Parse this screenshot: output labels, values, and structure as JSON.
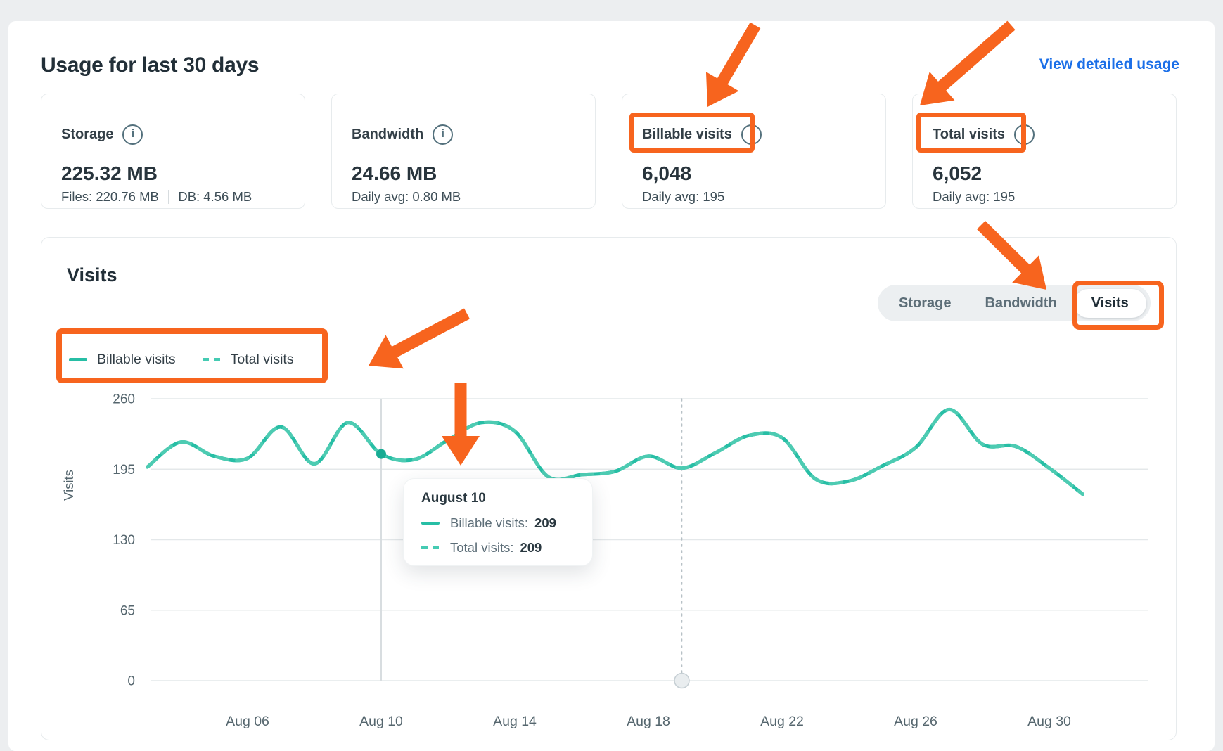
{
  "header": {
    "title": "Usage for last 30 days",
    "link_label": "View detailed usage"
  },
  "stats": {
    "cards": [
      {
        "label": "Storage",
        "value": "225.32 MB",
        "sub": "Files: 220.76 MB",
        "sub2": "DB: 4.56 MB"
      },
      {
        "label": "Bandwidth",
        "value": "24.66 MB",
        "sub": "Daily avg: 0.80 MB"
      },
      {
        "label": "Billable visits",
        "value": "6,048",
        "sub": "Daily avg: 195"
      },
      {
        "label": "Total visits",
        "value": "6,052",
        "sub": "Daily avg: 195"
      }
    ]
  },
  "chart": {
    "title": "Visits",
    "tabs": [
      {
        "label": "Storage",
        "active": false
      },
      {
        "label": "Bandwidth",
        "active": false
      },
      {
        "label": "Visits",
        "active": true
      }
    ],
    "legend": [
      {
        "label": "Billable visits",
        "style": "solid"
      },
      {
        "label": "Total visits",
        "style": "dashed"
      }
    ],
    "tooltip": {
      "title": "August 10",
      "rows": [
        {
          "label": "Billable visits:",
          "value": "209",
          "style": "solid"
        },
        {
          "label": "Total visits:",
          "value": "209",
          "style": "dashed"
        }
      ]
    }
  },
  "chart_data": {
    "type": "line",
    "title": "Visits",
    "ylabel": "Visits",
    "ylim": [
      0,
      260
    ],
    "y_ticks": [
      0,
      65,
      130,
      195,
      260
    ],
    "x_first_day": 3,
    "x_last_day": 31,
    "x_month": "August",
    "x_tick_days": [
      6,
      10,
      14,
      18,
      22,
      26,
      30
    ],
    "x_tick_labels": [
      "Aug 06",
      "Aug 10",
      "Aug 14",
      "Aug 18",
      "Aug 22",
      "Aug 26",
      "Aug 30"
    ],
    "grid": true,
    "legend_position": "top-left",
    "series": [
      {
        "name": "Billable visits",
        "style": "solid",
        "color": "#27bea5",
        "values": [
          197,
          220,
          207,
          205,
          234,
          200,
          238,
          209,
          204,
          222,
          238,
          230,
          188,
          190,
          193,
          207,
          196,
          210,
          226,
          224,
          186,
          184,
          198,
          215,
          250,
          218,
          216,
          196,
          172
        ]
      },
      {
        "name": "Total visits",
        "style": "dashed",
        "color": "#4dcbb2",
        "values": [
          197,
          220,
          207,
          205,
          234,
          200,
          238,
          209,
          204,
          222,
          238,
          230,
          188,
          190,
          193,
          207,
          196,
          210,
          226,
          224,
          186,
          184,
          198,
          215,
          250,
          218,
          216,
          196,
          172
        ]
      }
    ],
    "markers": {
      "highlight_day": 10,
      "highlight_value": 209,
      "cursor_day": 19
    }
  },
  "colors": {
    "accent_orange": "#f7641e",
    "teal_solid": "#27bea5",
    "teal_dashed": "#4dcbb2",
    "link_blue": "#1b6fe8"
  }
}
